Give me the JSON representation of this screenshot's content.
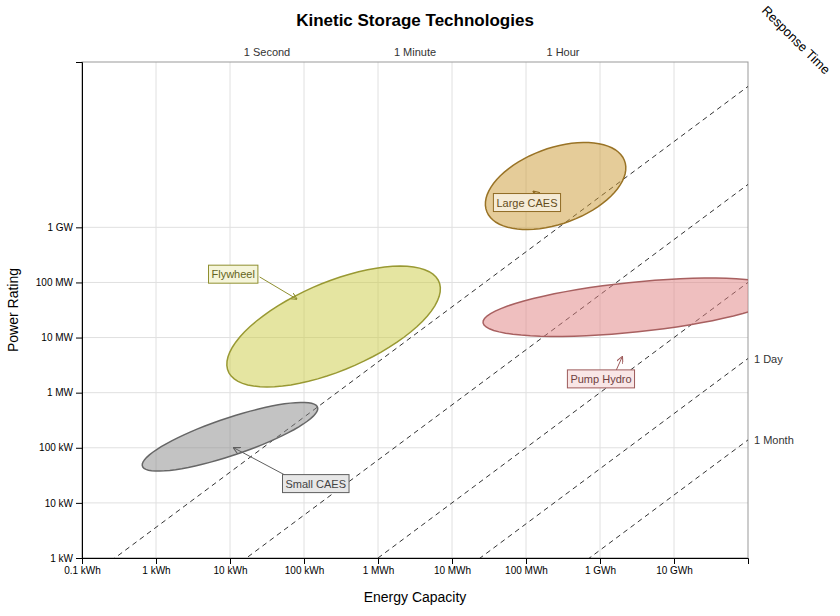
{
  "chart_data": {
    "type": "ellipse",
    "title": "Kinetic Storage Technologies",
    "x_label": "Energy Capacity",
    "y_label": "Power Rating",
    "xlim": [
      -1,
      8
    ],
    "ylim": [
      3,
      12
    ],
    "xticks": [
      {
        "value": -1,
        "label": "0.1 kWh"
      },
      {
        "value": 0,
        "label": "1 kWh"
      },
      {
        "value": 1,
        "label": "10 kWh"
      },
      {
        "value": 2,
        "label": "100 kWh"
      },
      {
        "value": 3,
        "label": "1 MWh"
      },
      {
        "value": 4,
        "label": "10 MWh"
      },
      {
        "value": 5,
        "label": "100 MWh"
      },
      {
        "value": 6,
        "label": "1 GWh"
      },
      {
        "value": 7,
        "label": "10 GWh"
      }
    ],
    "yticks": [
      {
        "value": 3,
        "label": "1 kW"
      },
      {
        "value": 4,
        "label": "10 kW"
      },
      {
        "value": 5,
        "label": "100 kW"
      },
      {
        "value": 6,
        "label": "1 MW"
      },
      {
        "value": 7,
        "label": "10 MW"
      },
      {
        "value": 8,
        "label": "100 MW"
      },
      {
        "value": 9,
        "label": "1 GW"
      }
    ],
    "grid": true,
    "response_lines": [
      {
        "name": "1 Second",
        "offset": 3.5563
      },
      {
        "name": "1 Minute",
        "offset": 1.7782
      },
      {
        "name": "1 Hour",
        "offset": 0.0
      },
      {
        "name": "1 Day",
        "offset": -1.3802
      },
      {
        "name": "1 Month",
        "offset": -2.8573
      }
    ],
    "top_labels": [
      {
        "label": "1 Second",
        "x": 1.5
      },
      {
        "label": "1 Minute",
        "x": 3.5
      },
      {
        "label": "1 Hour",
        "x": 5.5
      }
    ],
    "right_labels": [
      {
        "label": "1 Day",
        "offset": -1.3802
      },
      {
        "label": "1 Month",
        "offset": -2.8573
      }
    ],
    "response_time_label": "Response Time",
    "series": [
      {
        "name": "Small CAES",
        "color": "#888888",
        "cx": 1.0,
        "cy": 5.2,
        "width": 0.65,
        "height": 2.6,
        "angle": -65,
        "label_x": 1.75,
        "label_y": 4.35,
        "arrow_from": [
          1.82,
          4.45
        ],
        "arrow_to": [
          1.05,
          5.0
        ]
      },
      {
        "name": "Flywheel",
        "color": "#cccc44",
        "cx": 2.4,
        "cy": 7.2,
        "width": 1.5,
        "height": 3.3,
        "angle": -57,
        "label_x": 0.75,
        "label_y": 8.15,
        "arrow_from": [
          1.4,
          8.1
        ],
        "arrow_to": [
          1.9,
          7.7
        ]
      },
      {
        "name": "Large CAES",
        "color": "#cc9933",
        "cx": 5.4,
        "cy": 9.75,
        "width": 1.3,
        "height": 2.1,
        "angle": -57,
        "label_x": 4.6,
        "label_y": 9.45,
        "arrow_from": [
          5.22,
          9.52
        ],
        "arrow_to": [
          5.1,
          9.65
        ]
      },
      {
        "name": "Pump Hydro",
        "color": "#e08080",
        "cx": 6.45,
        "cy": 7.55,
        "width": 0.9,
        "height": 4.1,
        "angle": -82,
        "label_x": 5.6,
        "label_y": 6.25,
        "arrow_from": [
          6.2,
          6.35
        ],
        "arrow_to": [
          6.3,
          6.65
        ]
      }
    ]
  }
}
